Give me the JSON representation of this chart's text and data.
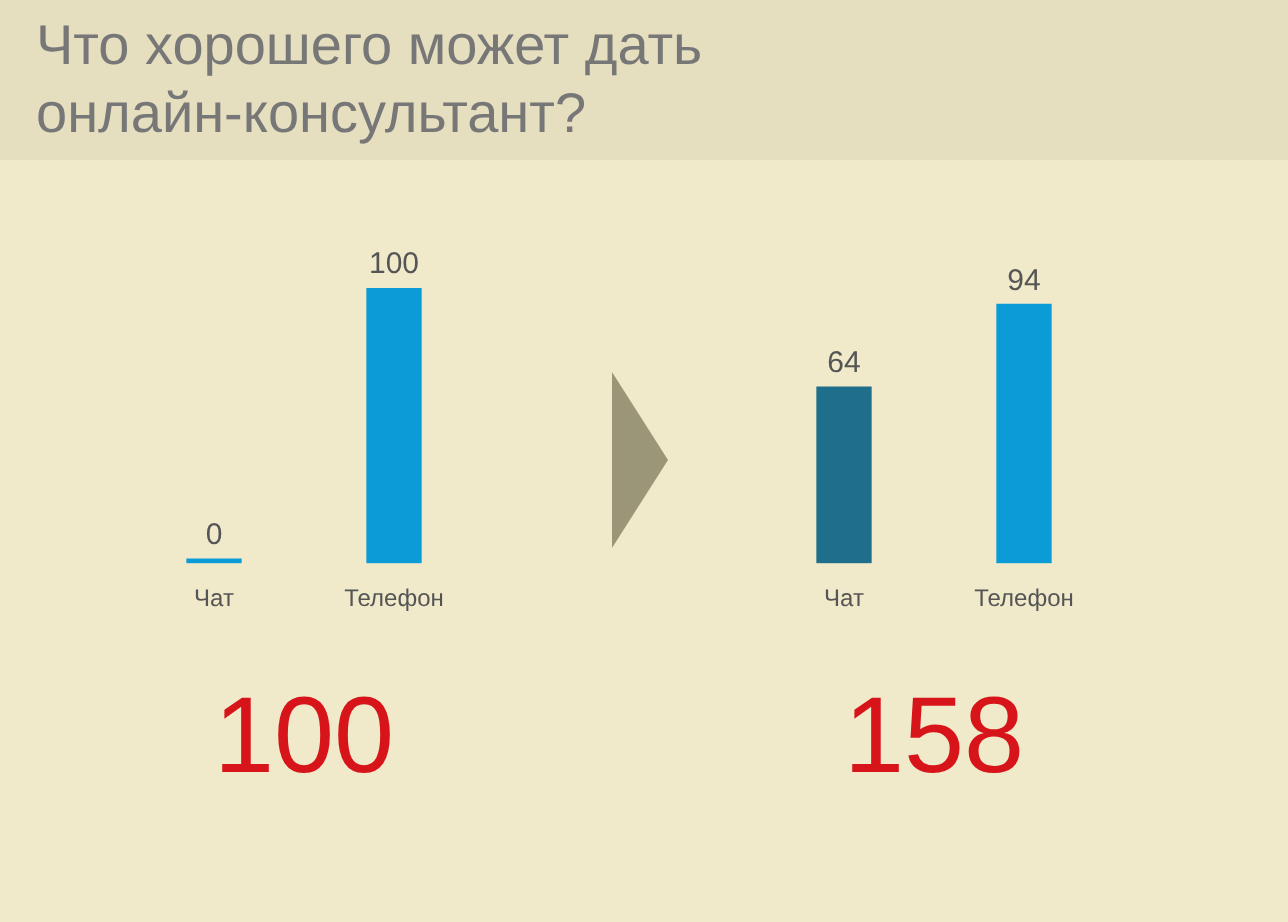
{
  "chart_data": [
    {
      "type": "bar",
      "title": "Что хорошего может дать онлайн-консультант?",
      "categories": [
        "Чат",
        "Телефон"
      ],
      "values": [
        0,
        100
      ],
      "colors": [
        "#0b9bd6",
        "#0b9bd6"
      ],
      "data_labels": true,
      "annotations": [
        "100"
      ]
    },
    {
      "type": "bar",
      "categories": [
        "Чат",
        "Телефон"
      ],
      "values": [
        64,
        94
      ],
      "colors": [
        "#1f6f8c",
        "#0b9bd6"
      ],
      "data_labels": true,
      "annotations": [
        "158"
      ]
    }
  ]
}
